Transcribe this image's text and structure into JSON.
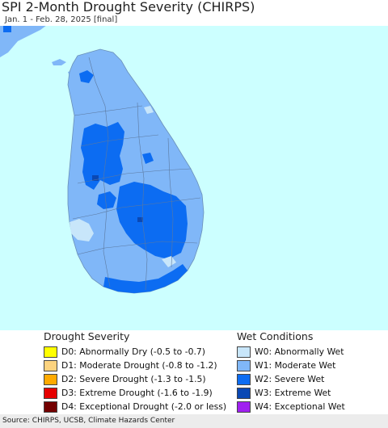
{
  "header": {
    "title": "SPI 2-Month Drought Severity (CHIRPS)",
    "subtitle": "Jan. 1 - Feb. 28, 2025 [final]"
  },
  "map": {
    "ocean_color": "#ccffff",
    "land_color": "#80b7f8",
    "dominant_class": "W1: Moderate Wet"
  },
  "legend": {
    "drought": {
      "title": "Drought Severity",
      "items": [
        {
          "label": "D0: Abnormally Dry (-0.5 to -0.7)",
          "color": "#ffff00"
        },
        {
          "label": "D1: Moderate Drought (-0.8 to -1.2)",
          "color": "#fcd37f"
        },
        {
          "label": "D2: Severe Drought (-1.3 to -1.5)",
          "color": "#ffaa00"
        },
        {
          "label": "D3: Extreme Drought (-1.6 to -1.9)",
          "color": "#e60000"
        },
        {
          "label": "D4: Exceptional Drought (-2.0 or less)",
          "color": "#730000"
        }
      ]
    },
    "wet": {
      "title": "Wet Conditions",
      "items": [
        {
          "label": "W0: Abnormally Wet",
          "color": "#c8e6fa"
        },
        {
          "label": "W1: Moderate Wet",
          "color": "#80b7f8"
        },
        {
          "label": "W2: Severe Wet",
          "color": "#0c6cf2"
        },
        {
          "label": "W3: Extreme Wet",
          "color": "#0a48b4"
        },
        {
          "label": "W4: Exceptional Wet",
          "color": "#a020f0"
        }
      ]
    }
  },
  "footer": {
    "source": "Source: CHIRPS, UCSB, Climate Hazards Center"
  }
}
